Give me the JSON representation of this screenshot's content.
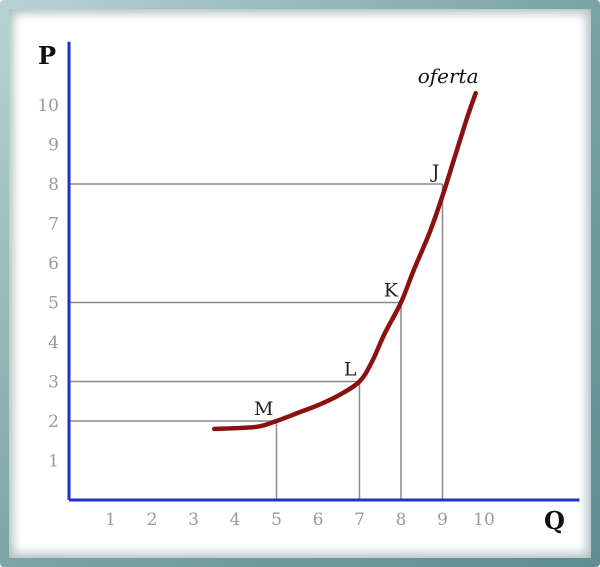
{
  "chart_data": {
    "type": "line",
    "title": "",
    "xlabel": "Q",
    "ylabel": "P",
    "xlim": [
      0,
      12.3
    ],
    "ylim": [
      0,
      11.6
    ],
    "x_ticks": [
      "1",
      "2",
      "3",
      "4",
      "5",
      "6",
      "7",
      "8",
      "9",
      "10"
    ],
    "y_ticks": [
      "1",
      "2",
      "3",
      "4",
      "5",
      "6",
      "7",
      "8",
      "9",
      "10"
    ],
    "series": [
      {
        "name": "oferta",
        "color": "#8b1010",
        "points": [
          [
            3.5,
            1.8
          ],
          [
            4.5,
            1.85
          ],
          [
            5.0,
            2.0
          ],
          [
            5.5,
            2.2
          ],
          [
            6.0,
            2.4
          ],
          [
            6.5,
            2.65
          ],
          [
            7.0,
            3.0
          ],
          [
            7.3,
            3.5
          ],
          [
            7.6,
            4.2
          ],
          [
            8.0,
            5.0
          ],
          [
            8.3,
            5.8
          ],
          [
            8.7,
            6.8
          ],
          [
            9.0,
            7.7
          ],
          [
            9.3,
            8.7
          ],
          [
            9.6,
            9.7
          ],
          [
            9.8,
            10.3
          ]
        ]
      }
    ],
    "points": [
      {
        "label": "M",
        "x": 5,
        "y": 2
      },
      {
        "label": "L",
        "x": 7,
        "y": 3
      },
      {
        "label": "K",
        "x": 8,
        "y": 5
      },
      {
        "label": "J",
        "x": 9,
        "y": 8
      }
    ],
    "grid": false
  },
  "colors": {
    "axis": "#1f2fd1",
    "guide": "#8a8a8a",
    "curve": "#8b1010"
  }
}
